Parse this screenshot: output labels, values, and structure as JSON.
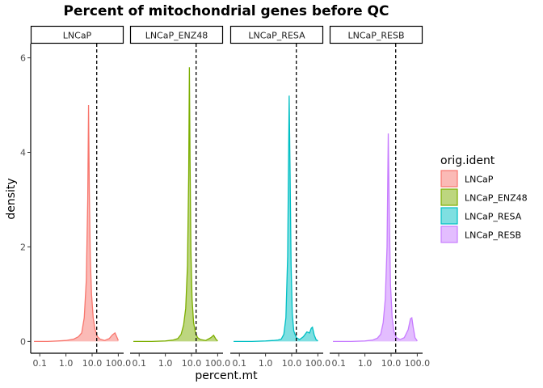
{
  "chart_data": {
    "type": "area",
    "title": "Percent of mitochondrial genes before QC",
    "xlabel": "percent.mt",
    "ylabel": "density",
    "x_scale": "log10",
    "xlim": [
      0.045,
      160
    ],
    "ylim": [
      -0.25,
      6.3
    ],
    "x_ticks": [
      0.1,
      1.0,
      10.0,
      100.0
    ],
    "x_tick_labels": [
      "0.1",
      "1.0",
      "10.0",
      "100.0"
    ],
    "y_ticks": [
      0,
      2,
      4,
      6
    ],
    "y_tick_labels": [
      "0",
      "2",
      "4",
      "6"
    ],
    "threshold": 15,
    "legend_title": "orig.ident",
    "series": [
      {
        "name": "LNCaP",
        "fill": "#F8766D",
        "points": [
          [
            0.06,
            0.0
          ],
          [
            0.2,
            0.0
          ],
          [
            0.5,
            0.01
          ],
          [
            1.0,
            0.02
          ],
          [
            2.0,
            0.05
          ],
          [
            3.0,
            0.1
          ],
          [
            4.0,
            0.18
          ],
          [
            5.0,
            0.5
          ],
          [
            6.0,
            1.3
          ],
          [
            6.8,
            3.0
          ],
          [
            7.3,
            5.0
          ],
          [
            7.8,
            3.2
          ],
          [
            8.5,
            1.8
          ],
          [
            9.5,
            1.0
          ],
          [
            11.0,
            0.5
          ],
          [
            13.0,
            0.25
          ],
          [
            16.0,
            0.1
          ],
          [
            20.0,
            0.05
          ],
          [
            30.0,
            0.02
          ],
          [
            45.0,
            0.06
          ],
          [
            60.0,
            0.14
          ],
          [
            75.0,
            0.18
          ],
          [
            90.0,
            0.08
          ],
          [
            100.0,
            0.02
          ]
        ]
      },
      {
        "name": "LNCaP_ENZ48",
        "fill": "#7CAE00",
        "points": [
          [
            0.06,
            0.0
          ],
          [
            0.3,
            0.0
          ],
          [
            1.0,
            0.01
          ],
          [
            2.0,
            0.03
          ],
          [
            3.0,
            0.06
          ],
          [
            4.0,
            0.15
          ],
          [
            5.0,
            0.35
          ],
          [
            6.0,
            0.7
          ],
          [
            7.0,
            1.6
          ],
          [
            7.8,
            3.5
          ],
          [
            8.3,
            5.8
          ],
          [
            8.8,
            3.8
          ],
          [
            9.5,
            1.9
          ],
          [
            10.5,
            0.9
          ],
          [
            12.0,
            0.4
          ],
          [
            14.0,
            0.2
          ],
          [
            17.0,
            0.08
          ],
          [
            22.0,
            0.04
          ],
          [
            35.0,
            0.02
          ],
          [
            55.0,
            0.08
          ],
          [
            70.0,
            0.13
          ],
          [
            85.0,
            0.05
          ],
          [
            100.0,
            0.01
          ]
        ]
      },
      {
        "name": "LNCaP_RESA",
        "fill": "#00BFC4",
        "points": [
          [
            0.06,
            0.0
          ],
          [
            0.3,
            0.0
          ],
          [
            1.0,
            0.01
          ],
          [
            2.0,
            0.02
          ],
          [
            3.0,
            0.03
          ],
          [
            4.0,
            0.05
          ],
          [
            5.0,
            0.15
          ],
          [
            6.0,
            0.5
          ],
          [
            7.0,
            1.8
          ],
          [
            8.0,
            5.2
          ],
          [
            8.7,
            3.5
          ],
          [
            9.5,
            1.6
          ],
          [
            10.5,
            0.6
          ],
          [
            12.0,
            0.22
          ],
          [
            15.0,
            0.08
          ],
          [
            20.0,
            0.04
          ],
          [
            28.0,
            0.1
          ],
          [
            38.0,
            0.2
          ],
          [
            48.0,
            0.18
          ],
          [
            56.0,
            0.28
          ],
          [
            62.0,
            0.3
          ],
          [
            72.0,
            0.14
          ],
          [
            85.0,
            0.04
          ],
          [
            100.0,
            0.01
          ]
        ]
      },
      {
        "name": "LNCaP_RESB",
        "fill": "#C77CFF",
        "points": [
          [
            0.06,
            0.0
          ],
          [
            0.3,
            0.0
          ],
          [
            1.0,
            0.01
          ],
          [
            2.0,
            0.03
          ],
          [
            3.0,
            0.07
          ],
          [
            4.0,
            0.15
          ],
          [
            5.0,
            0.4
          ],
          [
            6.0,
            0.9
          ],
          [
            7.0,
            2.0
          ],
          [
            7.8,
            4.4
          ],
          [
            8.5,
            2.8
          ],
          [
            9.5,
            1.2
          ],
          [
            11.0,
            0.5
          ],
          [
            13.0,
            0.2
          ],
          [
            16.0,
            0.08
          ],
          [
            22.0,
            0.04
          ],
          [
            32.0,
            0.08
          ],
          [
            45.0,
            0.25
          ],
          [
            55.0,
            0.48
          ],
          [
            62.0,
            0.5
          ],
          [
            70.0,
            0.3
          ],
          [
            82.0,
            0.08
          ],
          [
            100.0,
            0.01
          ]
        ]
      }
    ],
    "panels": [
      "LNCaP",
      "LNCaP_ENZ48",
      "LNCaP_RESA",
      "LNCaP_RESB"
    ]
  }
}
